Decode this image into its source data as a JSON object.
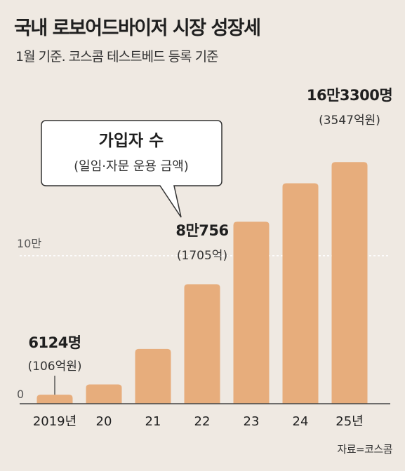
{
  "header": {
    "title": "국내 로보어드바이저 시장 성장세",
    "subtitle": "1월 기준. 코스콤 테스트베드 등록 기준"
  },
  "legend_box": {
    "title": "가입자 수",
    "subtitle": "(일임·자문 운용 금액)"
  },
  "source": "자료=코스콤",
  "colors": {
    "background": "#efe9e2",
    "bar": "#e7ad7c",
    "gridline": "#ffffff",
    "text": "#1f1f1f"
  },
  "chart_data": {
    "type": "bar",
    "categories": [
      "2019년",
      "20",
      "21",
      "22",
      "23",
      "24",
      "25년"
    ],
    "values": [
      6124,
      13000,
      37000,
      80756,
      123000,
      149000,
      163300
    ],
    "ylim": [
      0,
      180000
    ],
    "yticks": [
      {
        "value": 0,
        "label": "0"
      },
      {
        "value": 100000,
        "label": "10만"
      }
    ],
    "grid": "dashed at 10만",
    "annotations": [
      {
        "index": 0,
        "value_label": "6124명",
        "sub_label": "(106억원)"
      },
      {
        "index": 3,
        "value_label": "8만756",
        "sub_label": "(1705억)"
      },
      {
        "index": 6,
        "value_label": "16만3300명",
        "sub_label": "(3547억원)"
      }
    ]
  }
}
